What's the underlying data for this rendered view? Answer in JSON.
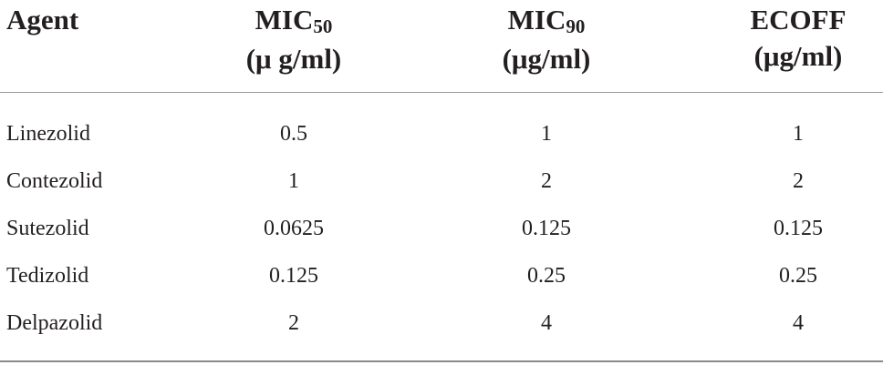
{
  "header": {
    "agent": "Agent",
    "mic50_main": "MIC",
    "mic50_sub": "50",
    "mic50_unit": "(μ g/ml)",
    "mic90_main": "MIC",
    "mic90_sub": "90",
    "mic90_unit": "(μg/ml)",
    "ecoff": "ECOFF",
    "ecoff_unit": "(μg/ml)"
  },
  "rows": [
    {
      "agent": "Linezolid",
      "mic50": "0.5",
      "mic90": "1",
      "ecoff": "1"
    },
    {
      "agent": "Contezolid",
      "mic50": "1",
      "mic90": "2",
      "ecoff": "2"
    },
    {
      "agent": "Sutezolid",
      "mic50": "0.0625",
      "mic90": "0.125",
      "ecoff": "0.125"
    },
    {
      "agent": "Tedizolid",
      "mic50": "0.125",
      "mic90": "0.25",
      "ecoff": "0.25"
    },
    {
      "agent": "Delpazolid",
      "mic50": "2",
      "mic90": "4",
      "ecoff": "4"
    }
  ]
}
